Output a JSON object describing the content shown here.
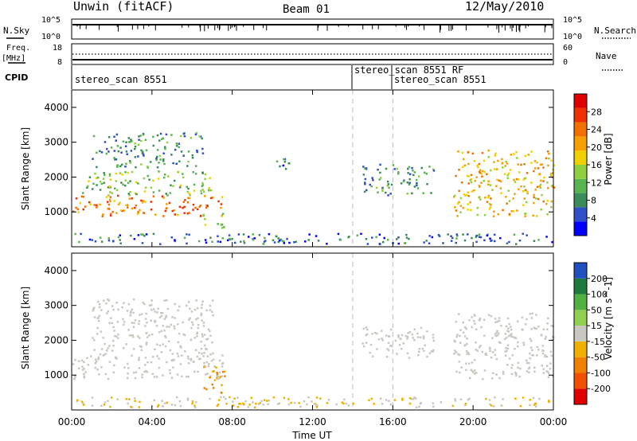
{
  "header": {
    "radar": "Unwin (fitACF)",
    "beam": "Beam 01",
    "date": "12/May/2010"
  },
  "nsky_panel": {
    "left_label": "N.Sky",
    "left_ticks": [
      "10^5",
      "10^0"
    ],
    "right_label": "N.Search",
    "right_ticks": [
      "10^5",
      "10^0"
    ]
  },
  "freq_panel": {
    "left_label": "Freq.",
    "left_unit": "[MHz]",
    "left_ticks": [
      "18",
      "8"
    ],
    "right_label": "Nave",
    "right_ticks": [
      "60",
      "0"
    ]
  },
  "cpid_panel": {
    "label": "CPID",
    "programs": [
      {
        "name": "stereo_scan 8551",
        "start": "00:00"
      },
      {
        "name": "stereo_scan 8551 RF",
        "start": "14:00"
      },
      {
        "name": "stereo_scan 8551",
        "start": "16:00"
      }
    ]
  },
  "xaxis": {
    "label": "Time UT",
    "ticks": [
      "00:00",
      "04:00",
      "08:00",
      "12:00",
      "16:00",
      "20:00",
      "00:00"
    ]
  },
  "colors": {
    "power": [
      "#0000ff",
      "#3050c8",
      "#3c8c5a",
      "#58b450",
      "#90d040",
      "#f0d000",
      "#f5a000",
      "#f07000",
      "#f03000",
      "#e00000"
    ],
    "velocity": [
      "#2050c0",
      "#1e7a3c",
      "#50b040",
      "#90d050",
      "#c8c8c0",
      "#f0b000",
      "#f08000",
      "#f05000",
      "#e00000"
    ]
  },
  "chart_data": [
    {
      "type": "heatmap",
      "title": "Power",
      "ylabel": "Slant Range [km]",
      "xlabel": "",
      "xlim_hours": [
        0,
        24
      ],
      "ylim_km": [
        0,
        4500
      ],
      "yticks": [
        "1000",
        "2000",
        "3000",
        "4000"
      ],
      "colorbar": {
        "label": "Power [dB]",
        "ticks": [
          "4",
          "8",
          "12",
          "16",
          "20",
          "24",
          "28"
        ],
        "range": [
          0,
          30
        ]
      },
      "regions": [
        {
          "t": [
            0.0,
            7.5
          ],
          "range_km": [
            900,
            1500
          ],
          "value": 22
        },
        {
          "t": [
            0.5,
            7.0
          ],
          "range_km": [
            1500,
            2200
          ],
          "value": 12
        },
        {
          "t": [
            1.0,
            6.5
          ],
          "range_km": [
            2300,
            3300
          ],
          "value": 8
        },
        {
          "t": [
            6.5,
            7.6
          ],
          "range_km": [
            500,
            1000
          ],
          "value": 12
        },
        {
          "t": [
            10.0,
            11.0
          ],
          "range_km": [
            2200,
            2600
          ],
          "value": 6
        },
        {
          "t": [
            14.4,
            18.0
          ],
          "range_km": [
            1500,
            2400
          ],
          "value": 8
        },
        {
          "t": [
            19.0,
            24.0
          ],
          "range_km": [
            900,
            2800
          ],
          "value": 18
        },
        {
          "t": [
            0.0,
            24.0
          ],
          "range_km": [
            100,
            400
          ],
          "value": 6
        }
      ]
    },
    {
      "type": "heatmap",
      "title": "Velocity",
      "ylabel": "Slant Range [km]",
      "xlabel": "Time UT",
      "xlim_hours": [
        0,
        24
      ],
      "ylim_km": [
        0,
        4500
      ],
      "yticks": [
        "1000",
        "2000",
        "3000",
        "4000"
      ],
      "colorbar": {
        "label": "Velocity [m s^-1]",
        "ticks": [
          "200",
          "100",
          "50",
          "15",
          "-15",
          "-50",
          "-100",
          "-200"
        ]
      },
      "regions": [
        {
          "t": [
            0.0,
            7.5
          ],
          "range_km": [
            900,
            1700
          ],
          "value": 0
        },
        {
          "t": [
            1.0,
            7.0
          ],
          "range_km": [
            1700,
            3200
          ],
          "value": 0
        },
        {
          "t": [
            6.5,
            7.6
          ],
          "range_km": [
            500,
            1300
          ],
          "value": -50
        },
        {
          "t": [
            14.4,
            18.0
          ],
          "range_km": [
            1500,
            2400
          ],
          "value": 0
        },
        {
          "t": [
            19.0,
            24.0
          ],
          "range_km": [
            900,
            2800
          ],
          "value": 0
        },
        {
          "t": [
            0.0,
            24.0
          ],
          "range_km": [
            100,
            400
          ],
          "value": -15
        }
      ]
    }
  ]
}
